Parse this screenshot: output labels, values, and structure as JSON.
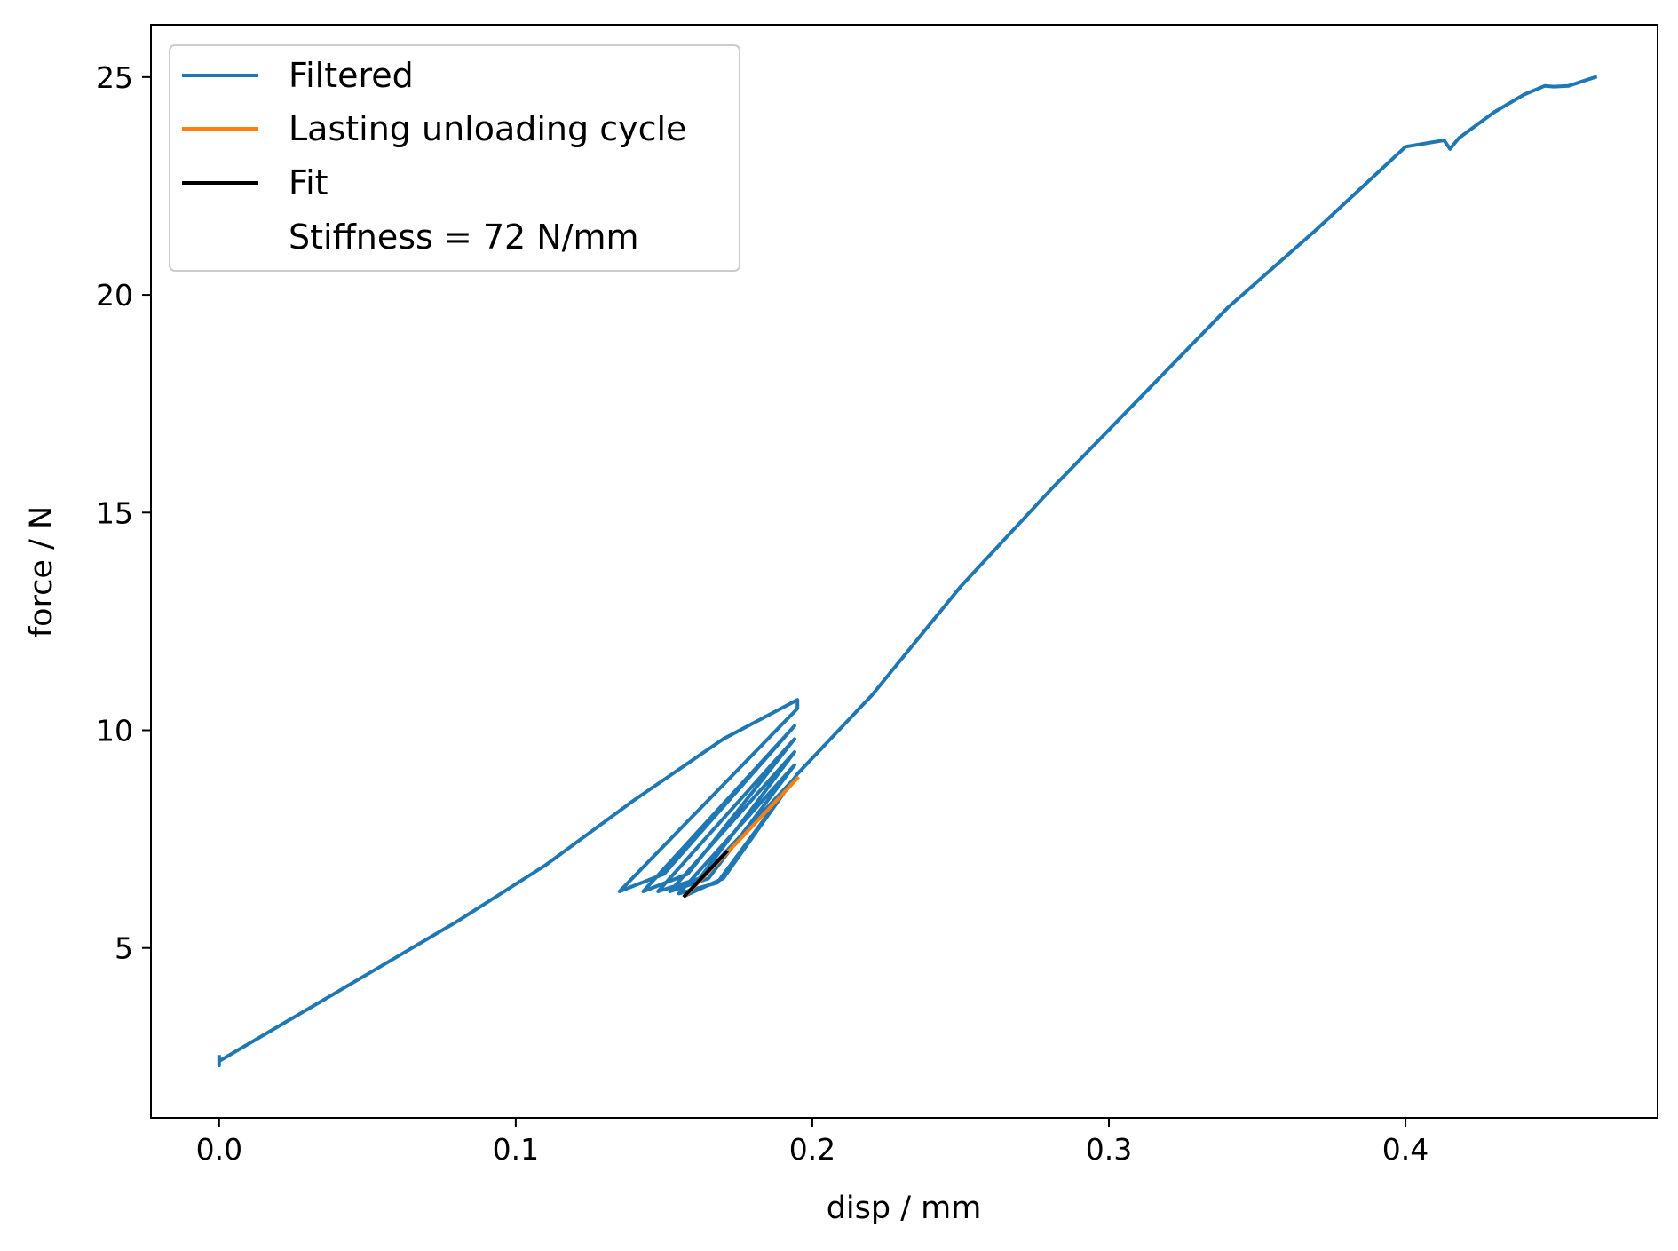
{
  "chart_data": {
    "type": "line",
    "title": "",
    "xlabel": "disp / mm",
    "ylabel": "force / N",
    "xlim": [
      -0.023,
      0.485
    ],
    "ylim": [
      1.1,
      26.2
    ],
    "xticks": [
      0.0,
      0.1,
      0.2,
      0.3,
      0.4
    ],
    "xtick_labels": [
      "0.0",
      "0.1",
      "0.2",
      "0.3",
      "0.4"
    ],
    "yticks": [
      5,
      10,
      15,
      20,
      25
    ],
    "ytick_labels": [
      "5",
      "10",
      "15",
      "20",
      "25"
    ],
    "grid": false,
    "legend_position": "top-left",
    "legend": [
      {
        "label": "Filtered",
        "color": "#1f77b4"
      },
      {
        "label": "Lasting unloading cycle",
        "color": "#ff7f0e"
      },
      {
        "label": "Fit",
        "color": "#000000"
      },
      {
        "label": "Stiffness = 72 N/mm",
        "color": "none"
      }
    ],
    "series": [
      {
        "name": "Filtered",
        "color": "#1f77b4",
        "x": [
          0.0,
          0.0,
          0.0,
          0.02,
          0.05,
          0.08,
          0.11,
          0.14,
          0.17,
          0.195,
          0.195,
          0.135,
          0.15,
          0.194,
          0.143,
          0.158,
          0.194,
          0.148,
          0.162,
          0.194,
          0.152,
          0.165,
          0.194,
          0.155,
          0.168,
          0.194,
          0.157,
          0.17,
          0.195,
          0.22,
          0.25,
          0.28,
          0.31,
          0.34,
          0.37,
          0.4,
          0.413,
          0.415,
          0.418,
          0.43,
          0.44,
          0.447,
          0.45,
          0.455,
          0.464
        ],
        "y": [
          2.5,
          2.3,
          2.4,
          3.2,
          4.4,
          5.6,
          6.9,
          8.4,
          9.8,
          10.7,
          10.5,
          6.3,
          6.7,
          10.1,
          6.3,
          6.7,
          9.8,
          6.3,
          6.6,
          9.5,
          6.3,
          6.6,
          9.2,
          6.25,
          6.5,
          8.9,
          6.2,
          6.6,
          9.0,
          10.8,
          13.3,
          15.5,
          17.6,
          19.7,
          21.5,
          23.4,
          23.55,
          23.35,
          23.6,
          24.2,
          24.6,
          24.8,
          24.78,
          24.8,
          25.0
        ]
      },
      {
        "name": "Lasting unloading cycle",
        "color": "#ff7f0e",
        "x": [
          0.158,
          0.175,
          0.195
        ],
        "y": [
          6.25,
          7.45,
          8.9
        ]
      },
      {
        "name": "Fit",
        "color": "#000000",
        "x": [
          0.157,
          0.171
        ],
        "y": [
          6.2,
          7.2
        ]
      }
    ]
  }
}
